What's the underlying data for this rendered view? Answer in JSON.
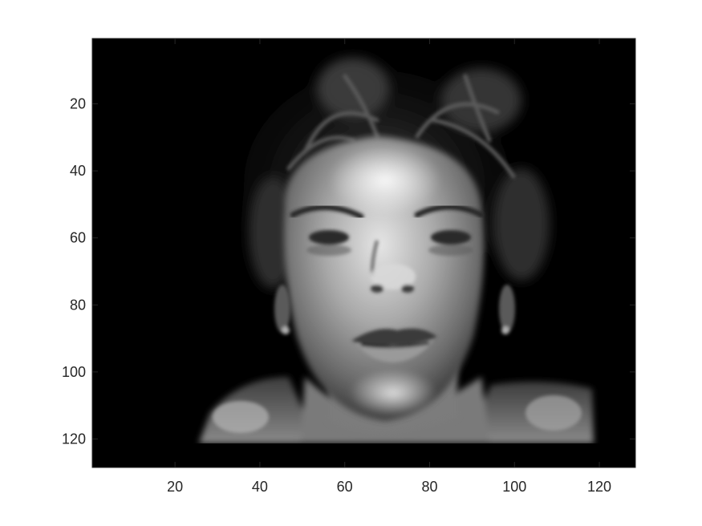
{
  "chart_data": {
    "type": "heatmap",
    "title": "",
    "xlabel": "",
    "ylabel": "",
    "xlim": [
      0.5,
      128.5
    ],
    "ylim": [
      0.5,
      128.5
    ],
    "y_direction": "reverse",
    "grid": false,
    "colormap": "gray",
    "xticks": [
      20,
      40,
      60,
      80,
      100,
      120
    ],
    "yticks": [
      20,
      40,
      60,
      80,
      100,
      120
    ],
    "xtick_labels": [
      "20",
      "40",
      "60",
      "80",
      "100",
      "120"
    ],
    "ytick_labels": [
      "20",
      "40",
      "60",
      "80",
      "100",
      "120"
    ],
    "content": "grayscale face image",
    "colors": {
      "background": "#000000",
      "axis": "#262626",
      "figure": "#ffffff"
    }
  }
}
